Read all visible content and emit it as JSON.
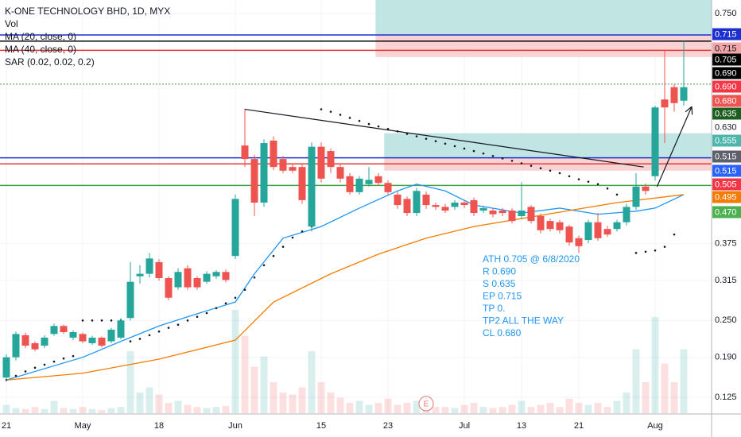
{
  "chart_data": {
    "type": "candlestick",
    "title": "K-ONE TECHNOLOGY BHD, 1D, MYX",
    "legend_items": [
      "Vol",
      "MA (20, close, 0)",
      "MA (40, close, 0)",
      "SAR (0.02, 0.02, 0.2)"
    ],
    "ylim": [
      0.099,
      0.772
    ],
    "yticks": [
      0.125,
      {
        "value": 0.19,
        "label": "0.190"
      },
      {
        "value": 0.25,
        "label": "0.250"
      },
      0.315,
      0.375,
      {
        "value": 0.75,
        "label": "0.750"
      }
    ],
    "grid": true,
    "up_color": "#26a69a",
    "down_color": "#ef5350",
    "xlabels": [
      {
        "label": "21",
        "index": 0
      },
      {
        "label": "May",
        "index": 8
      },
      {
        "label": "18",
        "index": 16
      },
      {
        "label": "Jun",
        "index": 24
      },
      {
        "label": "15",
        "index": 33
      },
      {
        "label": "23",
        "index": 40
      },
      {
        "label": "Jul",
        "index": 48
      },
      {
        "label": "13",
        "index": 54
      },
      {
        "label": "21",
        "index": 60
      },
      {
        "label": "Aug",
        "index": 68
      }
    ],
    "open": [
      0.157,
      0.19,
      0.226,
      0.213,
      0.209,
      0.228,
      0.241,
      0.222,
      0.228,
      0.213,
      0.222,
      0.216,
      0.222,
      0.254,
      0.322,
      0.326,
      0.345,
      0.319,
      0.304,
      0.335,
      0.319,
      0.313,
      0.322,
      0.329,
      0.355,
      0.535,
      0.513,
      0.442,
      0.543,
      0.513,
      0.5,
      0.5,
      0.403,
      0.533,
      0.526,
      0.5,
      0.485,
      0.459,
      0.472,
      0.485,
      0.474,
      0.455,
      0.448,
      0.425,
      0.455,
      0.438,
      0.435,
      0.435,
      0.442,
      0.446,
      0.429,
      0.429,
      0.429,
      0.429,
      0.42,
      0.435,
      0.42,
      0.412,
      0.41,
      0.403,
      0.384,
      0.381,
      0.41,
      0.399,
      0.399,
      0.41,
      0.435,
      0.468,
      0.485,
      0.61,
      0.63,
      0.608
    ],
    "high": [
      0.195,
      0.232,
      0.23,
      0.216,
      0.226,
      0.245,
      0.243,
      0.234,
      0.23,
      0.225,
      0.224,
      0.238,
      0.254,
      0.345,
      0.34,
      0.36,
      0.35,
      0.322,
      0.335,
      0.34,
      0.322,
      0.33,
      0.332,
      0.333,
      0.455,
      0.595,
      0.52,
      0.545,
      0.55,
      0.518,
      0.505,
      0.505,
      0.54,
      0.54,
      0.53,
      0.505,
      0.49,
      0.485,
      0.5,
      0.49,
      0.478,
      0.46,
      0.452,
      0.466,
      0.46,
      0.442,
      0.44,
      0.446,
      0.446,
      0.45,
      0.437,
      0.433,
      0.433,
      0.433,
      0.475,
      0.438,
      0.424,
      0.416,
      0.414,
      0.406,
      0.388,
      0.414,
      0.425,
      0.404,
      0.414,
      0.44,
      0.49,
      0.473,
      0.6,
      0.69,
      0.635,
      0.705
    ],
    "low": [
      0.152,
      0.185,
      0.205,
      0.2,
      0.205,
      0.225,
      0.228,
      0.218,
      0.213,
      0.21,
      0.206,
      0.213,
      0.219,
      0.25,
      0.31,
      0.32,
      0.315,
      0.283,
      0.3,
      0.3,
      0.3,
      0.31,
      0.318,
      0.312,
      0.35,
      0.5,
      0.42,
      0.435,
      0.495,
      0.49,
      0.49,
      0.44,
      0.395,
      0.475,
      0.49,
      0.475,
      0.455,
      0.455,
      0.468,
      0.47,
      0.455,
      0.432,
      0.42,
      0.42,
      0.432,
      0.43,
      0.425,
      0.43,
      0.433,
      0.42,
      0.425,
      0.418,
      0.42,
      0.408,
      0.415,
      0.408,
      0.392,
      0.395,
      0.392,
      0.372,
      0.36,
      0.376,
      0.38,
      0.386,
      0.395,
      0.405,
      0.43,
      0.455,
      0.478,
      0.539,
      0.59,
      0.6
    ],
    "close": [
      0.19,
      0.228,
      0.209,
      0.203,
      0.222,
      0.241,
      0.231,
      0.231,
      0.216,
      0.222,
      0.209,
      0.235,
      0.25,
      0.313,
      0.326,
      0.351,
      0.319,
      0.287,
      0.329,
      0.304,
      0.304,
      0.326,
      0.329,
      0.316,
      0.448,
      0.513,
      0.442,
      0.539,
      0.5,
      0.494,
      0.494,
      0.446,
      0.533,
      0.481,
      0.5,
      0.481,
      0.459,
      0.481,
      0.479,
      0.474,
      0.459,
      0.438,
      0.425,
      0.461,
      0.438,
      0.435,
      0.429,
      0.442,
      0.438,
      0.425,
      0.433,
      0.423,
      0.425,
      0.412,
      0.429,
      0.412,
      0.397,
      0.399,
      0.397,
      0.377,
      0.371,
      0.41,
      0.384,
      0.39,
      0.41,
      0.435,
      0.468,
      0.461,
      0.597,
      0.597,
      0.604,
      0.63
    ],
    "volume": [
      8,
      5,
      4,
      6,
      4,
      12,
      5,
      4,
      6,
      4,
      3,
      5,
      6,
      60,
      20,
      25,
      18,
      10,
      12,
      8,
      6,
      5,
      6,
      7,
      100,
      75,
      45,
      55,
      30,
      20,
      18,
      25,
      60,
      30,
      20,
      15,
      10,
      12,
      8,
      10,
      14,
      8,
      10,
      12,
      8,
      6,
      6,
      5,
      8,
      10,
      6,
      5,
      6,
      8,
      12,
      6,
      8,
      10,
      6,
      14,
      10,
      8,
      10,
      6,
      12,
      20,
      62,
      30,
      93,
      48,
      30,
      62
    ],
    "volume_lim": [
      0,
      100
    ],
    "ma": [
      {
        "color": "#2196f3",
        "x": [
          0,
          8,
          12,
          16,
          20,
          24,
          26,
          29,
          33,
          37,
          41,
          43,
          46,
          49,
          54,
          58,
          62,
          66,
          68,
          71
        ],
        "values": [
          0.153,
          0.19,
          0.216,
          0.241,
          0.261,
          0.28,
          0.326,
          0.384,
          0.403,
          0.433,
          0.461,
          0.472,
          0.461,
          0.438,
          0.425,
          0.433,
          0.423,
          0.428,
          0.433,
          0.455
        ]
      },
      {
        "color": "#f57c00",
        "x": [
          0,
          8,
          16,
          24,
          28,
          34,
          39,
          44,
          49,
          54,
          59,
          64,
          71
        ],
        "values": [
          0.153,
          0.164,
          0.187,
          0.218,
          0.28,
          0.326,
          0.358,
          0.384,
          0.403,
          0.416,
          0.429,
          0.442,
          0.455
        ]
      }
    ],
    "sar": [
      0.153,
      0.16,
      0.167,
      0.173,
      0.178,
      0.183,
      0.188,
      0.192,
      0.25,
      0.25,
      0.25,
      0.25,
      0.25,
      0.216,
      0.22,
      0.226,
      0.232,
      0.238,
      0.243,
      0.25,
      0.256,
      0.262,
      0.27,
      0.278,
      0.287,
      0.3,
      0.32,
      0.34,
      0.355,
      0.37,
      0.385,
      0.395,
      0.403,
      0.594,
      0.59,
      0.585,
      0.58,
      0.575,
      0.57,
      0.566,
      0.562,
      0.558,
      0.554,
      0.55,
      0.546,
      0.542,
      0.538,
      0.534,
      0.53,
      0.526,
      0.522,
      0.518,
      0.514,
      0.51,
      0.506,
      0.502,
      0.498,
      0.494,
      0.49,
      0.485,
      0.48,
      0.476,
      0.472,
      0.465,
      0.455,
      null,
      0.36,
      0.362,
      0.364,
      0.37,
      0.39,
      null
    ],
    "levels": [
      {
        "value": 0.715,
        "color": "#1e2fd0"
      },
      {
        "value": 0.705,
        "color": "#000000"
      },
      {
        "value": 0.69,
        "color": "#e53935"
      },
      {
        "value": 0.635,
        "color": "#43a047",
        "dash": true
      },
      {
        "value": 0.515,
        "color": "#1e2fd0"
      },
      {
        "value": 0.505,
        "color": "#e53935"
      },
      {
        "value": 0.47,
        "color": "#43a047"
      }
    ],
    "zones": [
      {
        "start": 38.7,
        "low": 0.715,
        "high": 0.772,
        "color": "#b2dfdb"
      },
      {
        "start": 38.7,
        "low": 0.679,
        "high": 0.715,
        "color": "#f8c8c8"
      },
      {
        "start": 39.6,
        "low": 0.515,
        "high": 0.555,
        "color": "#b2dfdb"
      },
      {
        "start": 39.6,
        "low": 0.494,
        "high": 0.515,
        "color": "#f8c8c8"
      }
    ],
    "drawings": [
      {
        "from": [
          25,
          0.594
        ],
        "to": [
          66.8,
          0.5
        ],
        "arrow": false
      },
      {
        "from": [
          68.2,
          0.468
        ],
        "to": [
          71.8,
          0.597
        ],
        "arrow": true
      }
    ],
    "badges": [
      {
        "label": "0.715",
        "color": "#1e2fd0",
        "text_color": "#ffffff"
      },
      {
        "label": "0.715",
        "color": "#f4a6a6",
        "text_color": "#131722"
      },
      {
        "label": "0.705",
        "color": "#000000",
        "text_color": "#ffffff"
      },
      {
        "label": "0.690",
        "color": "#000000",
        "text_color": "#ffffff"
      },
      {
        "label": "0.690",
        "color": "#f23645",
        "text_color": "#ffffff"
      },
      {
        "label": "0.680",
        "color": "#ef5350",
        "text_color": "#ffffff"
      },
      {
        "label": "0.635",
        "color": "#1b5e20",
        "text_color": "#ffffff"
      },
      {
        "label": "0.630",
        "color": "#ffffff",
        "text_color": "#131722"
      },
      {
        "label": "0.555",
        "color": "#4db6ac",
        "text_color": "#ffffff"
      },
      {
        "label": "0.515",
        "color": "#5d606b",
        "text_color": "#ffffff"
      },
      {
        "label": "0.515",
        "color": "#2962ff",
        "text_color": "#ffffff"
      },
      {
        "label": "0.505",
        "color": "#f23645",
        "text_color": "#ffffff"
      },
      {
        "label": "0.495",
        "color": "#f57c00",
        "text_color": "#ffffff"
      },
      {
        "label": "0.470",
        "color": "#4caf50",
        "text_color": "#ffffff"
      }
    ],
    "annotation": [
      "ATH 0.705 @ 6/8/2020",
      "R 0.690",
      "S 0.635",
      "EP 0.715",
      "TP 0.",
      "TP2 ALL THE WAY",
      "CL 0.680"
    ],
    "annotation_color": "#2196f3",
    "earnings": {
      "label": "E",
      "index": 44
    }
  }
}
